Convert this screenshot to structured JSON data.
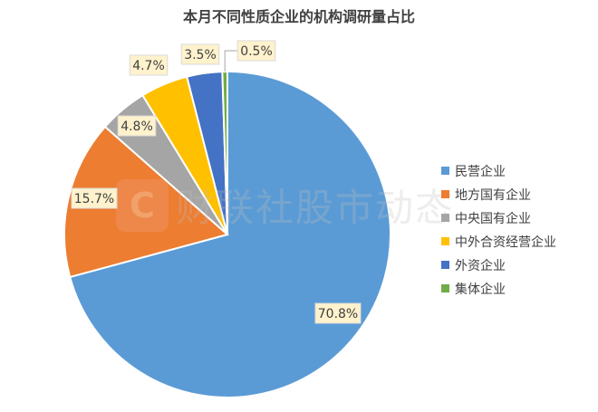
{
  "chart_data": {
    "type": "pie",
    "title": "本月不同性质企业的机构调研量占比",
    "categories": [
      "民营企业",
      "地方国有企业",
      "中央国有企业",
      "中外合资经营企业",
      "外资企业",
      "集体企业"
    ],
    "values": [
      70.8,
      15.7,
      4.8,
      4.7,
      3.5,
      0.5
    ],
    "labels": [
      "70.8%",
      "15.7%",
      "4.8%",
      "4.7%",
      "3.5%",
      "0.5%"
    ],
    "colors": [
      "#5B9BD5",
      "#ED7D31",
      "#A5A5A5",
      "#FFC000",
      "#4472C4",
      "#70AD47"
    ],
    "legend_position": "right"
  },
  "watermark": {
    "text": "财联社股市动态"
  }
}
